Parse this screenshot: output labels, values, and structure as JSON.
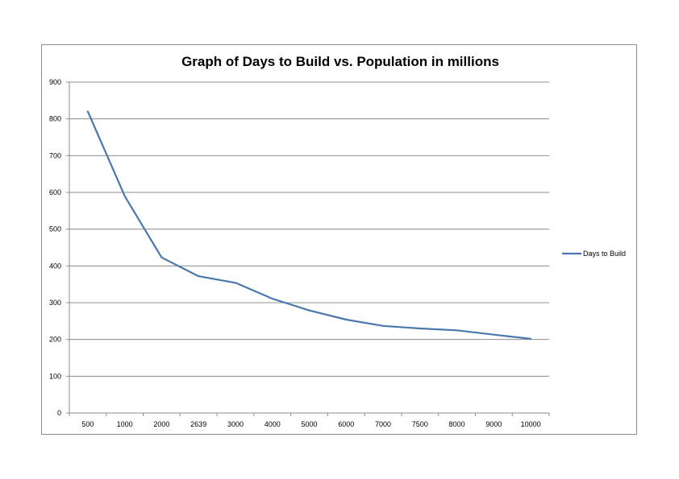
{
  "chart_data": {
    "type": "line",
    "title": "Graph of Days to Build vs. Population  in millions",
    "xlabel": "",
    "ylabel": "",
    "categories": [
      "500",
      "1000",
      "2000",
      "2639",
      "3000",
      "4000",
      "5000",
      "6000",
      "7000",
      "7500",
      "8000",
      "9000",
      "10000"
    ],
    "series": [
      {
        "name": "Days to Build",
        "values": [
          820,
          590,
          423,
          372,
          354,
          311,
          279,
          254,
          237,
          230,
          225,
          213,
          202
        ],
        "color": "#4a78ad"
      }
    ],
    "ylim": [
      0,
      900
    ],
    "yticks": [
      0,
      100,
      200,
      300,
      400,
      500,
      600,
      700,
      800,
      900
    ],
    "grid": "horizontal",
    "legend_position": "right"
  }
}
